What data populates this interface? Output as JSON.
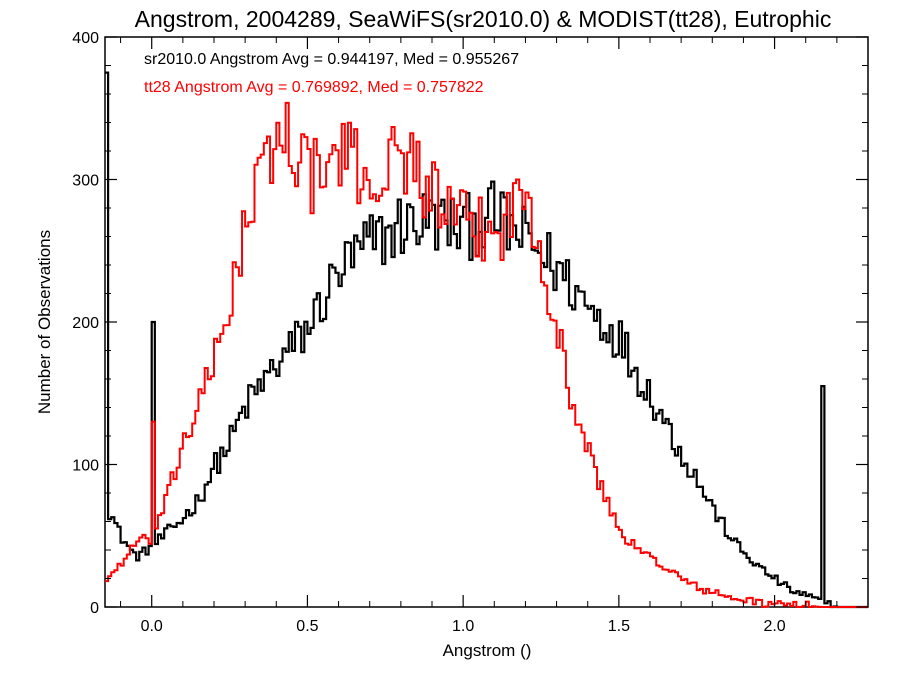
{
  "chart_data": {
    "type": "histogram-step",
    "title": "Angstrom, 2004289, SeaWiFS(sr2010.0) & MODIST(tt28), Eutrophic",
    "xlabel": "Angstrom ()",
    "ylabel": "Number of Observations",
    "xlim": [
      -0.15,
      2.3
    ],
    "ylim": [
      0,
      400
    ],
    "xticks": [
      0.0,
      0.5,
      1.0,
      1.5,
      2.0
    ],
    "xtick_labels": [
      "0.0",
      "0.5",
      "1.0",
      "1.5",
      "2.0"
    ],
    "yticks": [
      0,
      100,
      200,
      300,
      400
    ],
    "ytick_labels": [
      "0",
      "100",
      "200",
      "300",
      "400"
    ],
    "grid": false,
    "legend": "none",
    "annotations": [
      {
        "text": "sr2010.0 Angstrom Avg = 0.944197, Med = 0.955267",
        "color": "#000000"
      },
      {
        "text": "tt28 Angstrom Avg = 0.769892, Med = 0.757822",
        "color": "#ff0000"
      }
    ],
    "bin_width": 0.01,
    "series": [
      {
        "color": "#000000",
        "x": [
          -0.15,
          -0.1,
          -0.05,
          0.0,
          0.05,
          0.1,
          0.15,
          0.2,
          0.25,
          0.3,
          0.35,
          0.4,
          0.45,
          0.5,
          0.55,
          0.6,
          0.65,
          0.7,
          0.75,
          0.8,
          0.85,
          0.9,
          0.95,
          1.0,
          1.05,
          1.1,
          1.15,
          1.2,
          1.25,
          1.3,
          1.35,
          1.4,
          1.45,
          1.5,
          1.55,
          1.6,
          1.65,
          1.7,
          1.75,
          1.8,
          1.85,
          1.9,
          1.95,
          2.0,
          2.05,
          2.1,
          2.15,
          2.2,
          2.25,
          2.3
        ],
        "y": [
          75,
          50,
          35,
          42,
          52,
          62,
          75,
          98,
          115,
          140,
          155,
          170,
          182,
          195,
          215,
          235,
          245,
          255,
          260,
          268,
          270,
          272,
          268,
          265,
          270,
          275,
          265,
          258,
          248,
          238,
          225,
          212,
          200,
          190,
          168,
          150,
          130,
          108,
          90,
          70,
          52,
          38,
          28,
          20,
          12,
          8,
          4,
          0,
          0,
          0
        ],
        "spikes": [
          {
            "x": -0.15,
            "y": 375
          },
          {
            "x": 0.0,
            "y": 200
          },
          {
            "x": 2.15,
            "y": 155
          }
        ]
      },
      {
        "color": "#ff0000",
        "x": [
          -0.15,
          -0.1,
          -0.05,
          0.0,
          0.05,
          0.1,
          0.15,
          0.2,
          0.25,
          0.3,
          0.35,
          0.4,
          0.45,
          0.5,
          0.55,
          0.6,
          0.65,
          0.7,
          0.75,
          0.8,
          0.85,
          0.9,
          0.95,
          1.0,
          1.05,
          1.1,
          1.15,
          1.2,
          1.25,
          1.3,
          1.35,
          1.4,
          1.45,
          1.5,
          1.55,
          1.6,
          1.65,
          1.7,
          1.75,
          1.8,
          1.85,
          1.9,
          1.95,
          2.0,
          2.05,
          2.1,
          2.15,
          2.2,
          2.25,
          2.3
        ],
        "y": [
          18,
          30,
          45,
          48,
          75,
          115,
          140,
          170,
          215,
          265,
          300,
          330,
          330,
          305,
          300,
          320,
          310,
          300,
          305,
          320,
          310,
          290,
          275,
          268,
          265,
          260,
          275,
          295,
          255,
          195,
          145,
          110,
          80,
          55,
          42,
          35,
          28,
          20,
          14,
          10,
          7,
          5,
          3,
          2,
          1,
          1,
          0,
          0,
          0,
          0
        ],
        "spikes": [
          {
            "x": 0.0,
            "y": 130
          }
        ]
      }
    ]
  }
}
